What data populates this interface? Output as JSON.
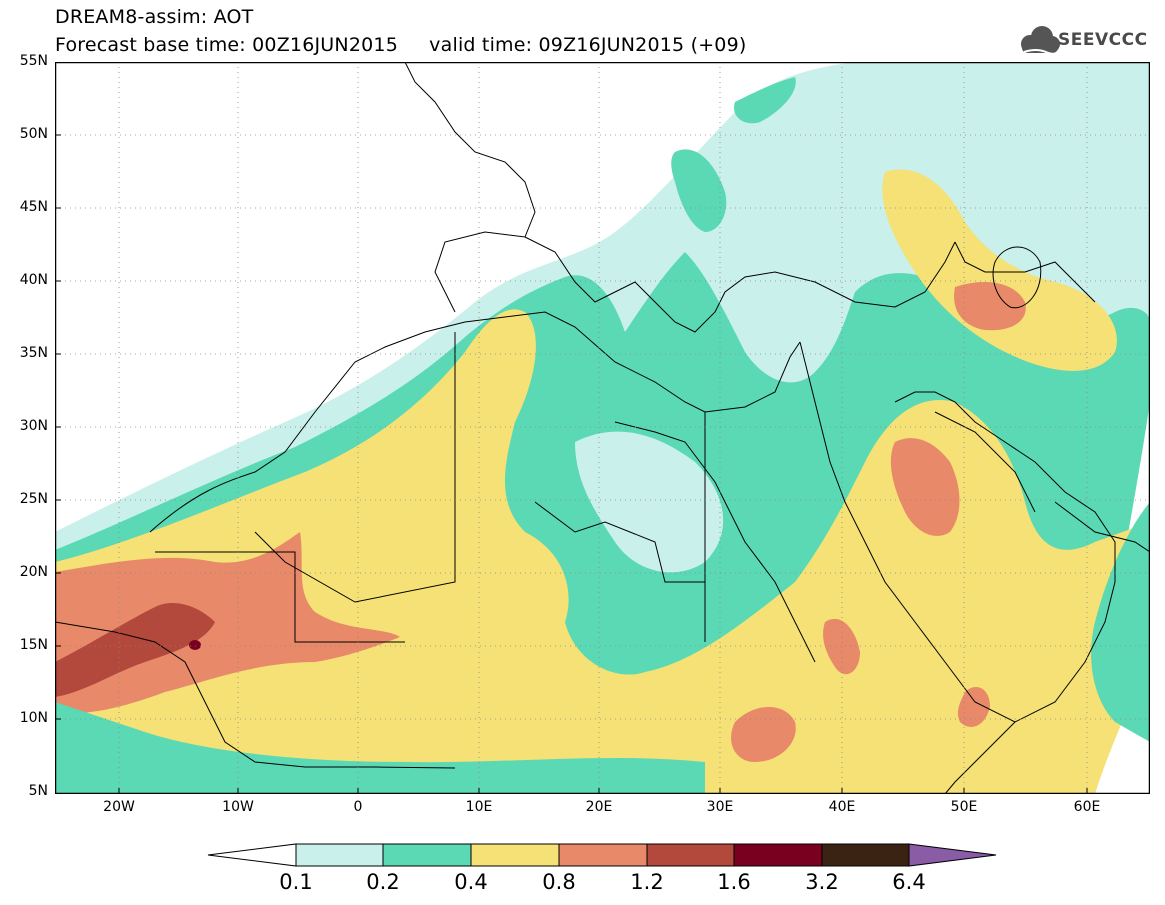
{
  "header": {
    "title_line1": "DREAM8-assim: AOT",
    "title_line2": "Forecast base time: 00Z16JUN2015     valid time: 09Z16JUN2015 (+09)",
    "logo_text": "SEEVCCC"
  },
  "map": {
    "lat_labels": [
      "55N",
      "50N",
      "45N",
      "40N",
      "35N",
      "30N",
      "25N",
      "20N",
      "15N",
      "10N",
      "5N"
    ],
    "lon_labels": [
      "20W",
      "10W",
      "0",
      "10E",
      "20E",
      "30E",
      "40E",
      "50E",
      "60E"
    ],
    "extent": {
      "lon_min": -25,
      "lon_max": 65,
      "lat_min": 5,
      "lat_max": 55
    },
    "grid": "dotted"
  },
  "colorbar": {
    "labels": [
      "0.1",
      "0.2",
      "0.4",
      "0.8",
      "1.2",
      "1.6",
      "3.2",
      "6.4"
    ],
    "colors": [
      "#ffffff",
      "#c9f0ea",
      "#5ad9b4",
      "#f5e175",
      "#e8896a",
      "#b2493c",
      "#7a0020",
      "#3b2314",
      "#8a5ca6"
    ]
  }
}
